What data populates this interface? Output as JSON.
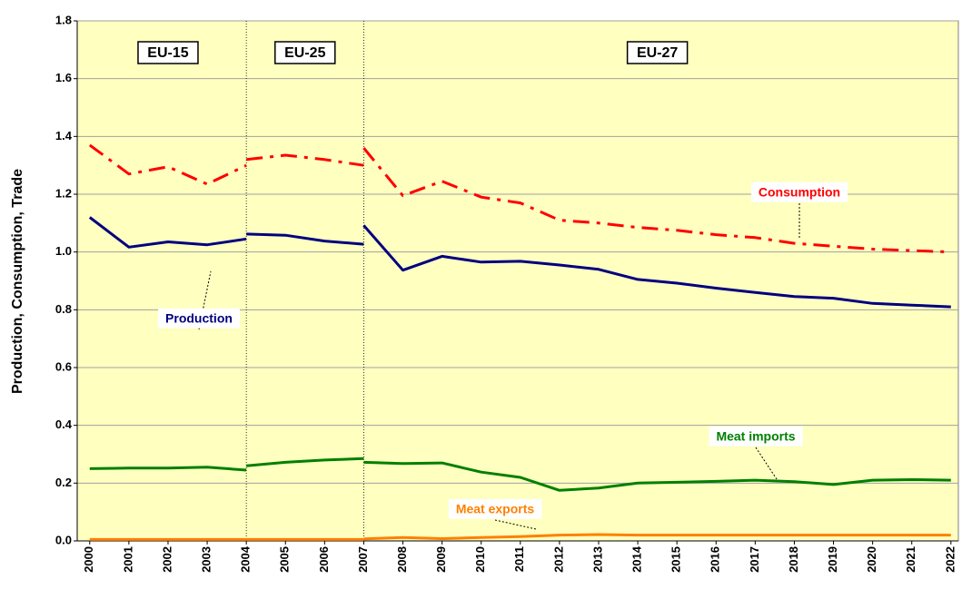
{
  "chart_data": {
    "type": "line",
    "ylabel": "Production, Consumption, Trade",
    "x": [
      2000,
      2001,
      2002,
      2003,
      2004,
      null,
      2004,
      2005,
      2006,
      2007,
      null,
      2007,
      2008,
      2009,
      2010,
      2011,
      2012,
      2013,
      2014,
      2015,
      2016,
      2017,
      2018,
      2019,
      2020,
      2021,
      2022
    ],
    "series": [
      {
        "name": "Consumption",
        "color": "#ff0000",
        "dash": "dashdot",
        "values": [
          1.37,
          1.27,
          1.295,
          1.235,
          1.3,
          null,
          1.32,
          1.335,
          1.32,
          1.3,
          null,
          1.36,
          1.195,
          1.245,
          1.19,
          1.17,
          1.11,
          1.1,
          1.085,
          1.075,
          1.06,
          1.05,
          1.03,
          1.02,
          1.01,
          1.005,
          1.0
        ]
      },
      {
        "name": "Production",
        "color": "#000080",
        "dash": "solid",
        "values": [
          1.12,
          1.017,
          1.035,
          1.025,
          1.045,
          null,
          1.062,
          1.058,
          1.038,
          1.027,
          null,
          1.092,
          0.937,
          0.985,
          0.965,
          0.968,
          0.955,
          0.94,
          0.905,
          0.892,
          0.875,
          0.86,
          0.846,
          0.84,
          0.822,
          0.816,
          0.81
        ]
      },
      {
        "name": "Meat imports",
        "color": "#008000",
        "dash": "solid",
        "values": [
          0.25,
          0.252,
          0.252,
          0.255,
          0.245,
          null,
          0.26,
          0.272,
          0.28,
          0.285,
          null,
          0.272,
          0.268,
          0.27,
          0.238,
          0.22,
          0.175,
          0.183,
          0.2,
          0.203,
          0.206,
          0.21,
          0.205,
          0.195,
          0.21,
          0.212,
          0.21
        ]
      },
      {
        "name": "Meat exports",
        "color": "#ff8000",
        "dash": "solid",
        "values": [
          0.005,
          0.005,
          0.005,
          0.005,
          0.005,
          null,
          0.005,
          0.005,
          0.005,
          0.005,
          null,
          0.007,
          0.012,
          0.008,
          0.012,
          0.015,
          0.02,
          0.022,
          0.02,
          0.02,
          0.02,
          0.02,
          0.02,
          0.02,
          0.02,
          0.02,
          0.02
        ]
      }
    ],
    "periods": [
      {
        "label": "EU-15",
        "start": 2000,
        "end": 2004
      },
      {
        "label": "EU-25",
        "start": 2004,
        "end": 2007
      },
      {
        "label": "EU-27",
        "start": 2007,
        "end": 2022
      }
    ],
    "xlim": [
      1999.68,
      2022.19
    ],
    "xticks": [
      2000,
      2001,
      2002,
      2003,
      2004,
      2005,
      2006,
      2007,
      2008,
      2009,
      2010,
      2011,
      2012,
      2013,
      2014,
      2015,
      2016,
      2017,
      2018,
      2019,
      2020,
      2021,
      2022
    ],
    "ylim": [
      0,
      1.8
    ],
    "yticks": [
      {
        "value": 0,
        "label": "0.0"
      },
      0.2,
      0.4,
      0.6,
      0.8,
      {
        "value": 1,
        "label": "1.0"
      },
      1.2,
      1.4,
      1.6,
      1.8
    ],
    "grid": true,
    "background": "#ffffc0"
  }
}
